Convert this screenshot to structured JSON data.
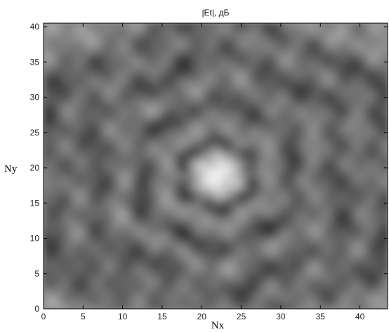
{
  "chart_data": {
    "type": "heatmap",
    "title": "|Et|, дБ",
    "xlabel": "Nx",
    "ylabel": "Ny",
    "xlim": [
      0,
      43.5
    ],
    "ylim": [
      0,
      40.5
    ],
    "xticks": [
      0,
      5,
      10,
      15,
      20,
      25,
      30,
      35,
      40
    ],
    "yticks": [
      0,
      5,
      10,
      15,
      20,
      25,
      30,
      35,
      40
    ],
    "colormap": "grayscale",
    "grid": false,
    "peak": {
      "x": 22,
      "y": 19
    },
    "dark_rings_radius": [
      4.5,
      10,
      16,
      22
    ],
    "colors": {
      "axes": "#000000",
      "background": "#ffffff"
    }
  }
}
